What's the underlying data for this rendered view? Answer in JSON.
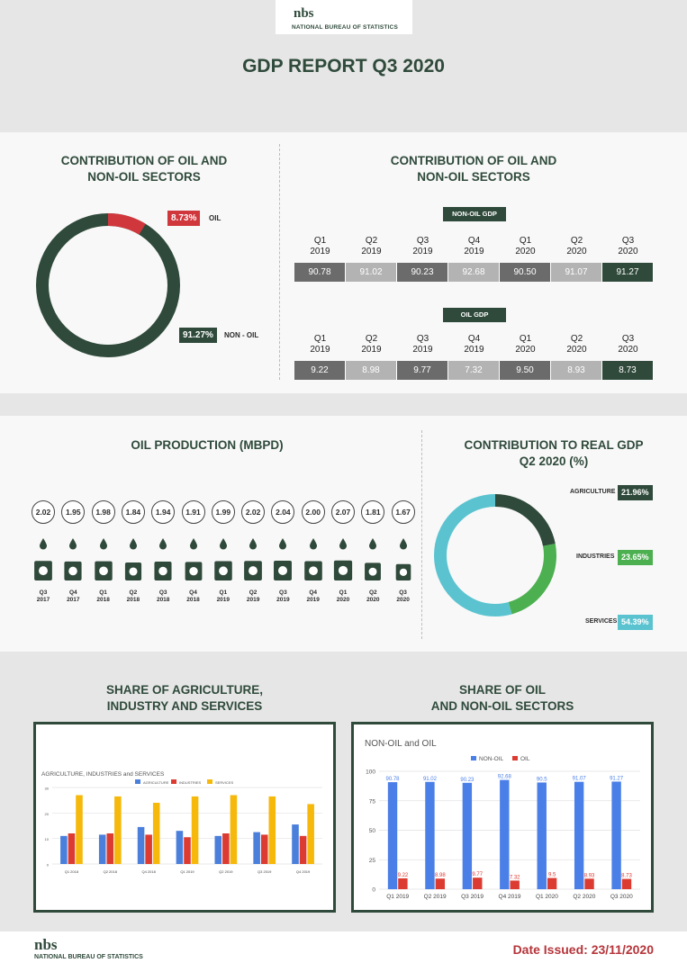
{
  "header": {
    "logo_mark": "nbs",
    "logo_text": "NATIONAL BUREAU OF STATISTICS",
    "title": "GDP REPORT Q3 2020"
  },
  "section1": {
    "left_title_1": "CONTRIBUTION OF OIL AND",
    "left_title_2": "NON-OIL SECTORS",
    "right_title_1": "CONTRIBUTION OF OIL AND",
    "right_title_2": "NON-OIL SECTORS",
    "donut": {
      "oil_value": "8.73%",
      "oil_label": "OIL",
      "nonoil_value": "91.27%",
      "nonoil_label": "NON - OIL",
      "oil_share": 8.73,
      "colors": {
        "oil": "#d0373d",
        "nonoil": "#2f4a3b"
      }
    },
    "nonoil_tag": "NON-OIL GDP",
    "oil_tag": "OIL GDP",
    "quarters": [
      {
        "q": "Q1",
        "y": "2019"
      },
      {
        "q": "Q2",
        "y": "2019"
      },
      {
        "q": "Q3",
        "y": "2019"
      },
      {
        "q": "Q4",
        "y": "2019"
      },
      {
        "q": "Q1",
        "y": "2020"
      },
      {
        "q": "Q2",
        "y": "2020"
      },
      {
        "q": "Q3",
        "y": "2020"
      }
    ],
    "nonoil_values": [
      "90.78",
      "91.02",
      "90.23",
      "92.68",
      "90.50",
      "91.07",
      "91.27"
    ],
    "oil_values": [
      "9.22",
      "8.98",
      "9.77",
      "7.32",
      "9.50",
      "8.93",
      "8.73"
    ],
    "cell_colors": [
      "#6b6b6b",
      "#b3b3b3",
      "#6b6b6b",
      "#b3b3b3",
      "#6b6b6b",
      "#b3b3b3",
      "#2f4a3b"
    ]
  },
  "section2": {
    "oil_title": "OIL PRODUCTION (MBPD)",
    "real_title_1": "CONTRIBUTION TO REAL GDP",
    "real_title_2": "Q2 2020 (%)",
    "production": [
      {
        "v": "2.02",
        "q": "Q3",
        "y": "2017"
      },
      {
        "v": "1.95",
        "q": "Q4",
        "y": "2017"
      },
      {
        "v": "1.98",
        "q": "Q1",
        "y": "2018"
      },
      {
        "v": "1.84",
        "q": "Q2",
        "y": "2018"
      },
      {
        "v": "1.94",
        "q": "Q3",
        "y": "2018"
      },
      {
        "v": "1.91",
        "q": "Q4",
        "y": "2018"
      },
      {
        "v": "1.99",
        "q": "Q1",
        "y": "2019"
      },
      {
        "v": "2.02",
        "q": "Q2",
        "y": "2019"
      },
      {
        "v": "2.04",
        "q": "Q3",
        "y": "2019"
      },
      {
        "v": "2.00",
        "q": "Q4",
        "y": "2019"
      },
      {
        "v": "2.07",
        "q": "Q1",
        "y": "2020"
      },
      {
        "v": "1.81",
        "q": "Q2",
        "y": "2020"
      },
      {
        "v": "1.67",
        "q": "Q3",
        "y": "2020"
      }
    ],
    "sectors": [
      {
        "label": "AGRICULTURE",
        "value": "21.96%",
        "share": 21.96,
        "color": "#2f4a3b"
      },
      {
        "label": "INDUSTRIES",
        "value": "23.65%",
        "share": 23.65,
        "color": "#4cb050"
      },
      {
        "label": "SERVICES",
        "value": "54.39%",
        "share": 54.39,
        "color": "#5bc3d0"
      }
    ]
  },
  "section3": {
    "left_title_1": "SHARE OF AGRICULTURE,",
    "left_title_2": "INDUSTRY AND SERVICES",
    "right_title_1": "SHARE OF OIL",
    "right_title_2": "AND NON-OIL SECTORS"
  },
  "chart_data": [
    {
      "type": "bar",
      "title": "AGRICULTURE, INDUSTRIES and SERVICES",
      "categories": [
        "Q1 2018",
        "Q2 2018",
        "Q4 2018",
        "Q1 2019",
        "Q2 2019",
        "Q3 2019",
        "Q4 2019"
      ],
      "ylim": [
        0,
        30
      ],
      "yticks": [
        "0",
        "10",
        "20",
        "30"
      ],
      "series": [
        {
          "name": "AGRICULTURE",
          "color": "#4a7fdc",
          "values": [
            11,
            11.5,
            14.5,
            13,
            11,
            12.5,
            15.5
          ]
        },
        {
          "name": "INDUSTRIES",
          "color": "#dc3b31",
          "values": [
            12,
            12,
            11.5,
            10.5,
            12,
            11.5,
            11
          ]
        },
        {
          "name": "SERVICES",
          "color": "#f6b80b",
          "values": [
            27,
            26.5,
            24,
            26.5,
            27,
            26.5,
            23.5
          ]
        }
      ]
    },
    {
      "type": "bar",
      "title": "NON-OIL and OIL",
      "categories": [
        "Q1 2019",
        "Q2 2019",
        "Q3 2019",
        "Q4 2019",
        "Q1 2020",
        "Q2 2020",
        "Q3 2020"
      ],
      "ylim": [
        0,
        100
      ],
      "yticks": [
        "0",
        "25",
        "50",
        "75",
        "100"
      ],
      "series": [
        {
          "name": "NON-OIL",
          "color": "#4a7fe8",
          "values": [
            90.78,
            91.02,
            90.23,
            92.68,
            90.5,
            91.07,
            91.27
          ],
          "labels": [
            "90.78",
            "91.02",
            "90.23",
            "92.68",
            "90.5",
            "91.07",
            "91.27"
          ]
        },
        {
          "name": "OIL",
          "color": "#dc3b31",
          "values": [
            9.22,
            8.98,
            9.77,
            7.32,
            9.5,
            8.93,
            8.73
          ],
          "labels": [
            "9.22",
            "8.98",
            "9.77",
            "7.32",
            "9.5",
            "8.93",
            "8.73"
          ]
        }
      ]
    }
  ],
  "footer": {
    "logo_mark": "nbs",
    "logo_text": "NATIONAL BUREAU OF STATISTICS",
    "date": "Date Issued: 23/11/2020"
  }
}
